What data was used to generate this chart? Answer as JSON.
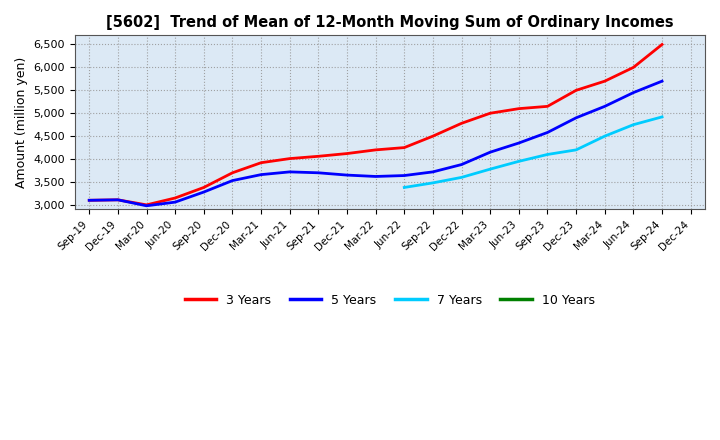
{
  "title": "[5602]  Trend of Mean of 12-Month Moving Sum of Ordinary Incomes",
  "ylabel": "Amount (million yen)",
  "ylim": [
    2900,
    6700
  ],
  "yticks": [
    3000,
    3500,
    4000,
    4500,
    5000,
    5500,
    6000,
    6500
  ],
  "plot_bg": "#dce9f5",
  "fig_bg": "#ffffff",
  "grid_color": "#999999",
  "x_labels": [
    "Sep-19",
    "Dec-19",
    "Mar-20",
    "Jun-20",
    "Sep-20",
    "Dec-20",
    "Mar-21",
    "Jun-21",
    "Sep-21",
    "Dec-21",
    "Mar-22",
    "Jun-22",
    "Sep-22",
    "Dec-22",
    "Mar-23",
    "Jun-23",
    "Sep-23",
    "Dec-23",
    "Mar-24",
    "Jun-24",
    "Sep-24",
    "Dec-24"
  ],
  "series": {
    "3 Years": {
      "color": "#ff0000",
      "data_x": [
        0,
        1,
        2,
        3,
        4,
        5,
        6,
        7,
        8,
        9,
        10,
        11,
        12,
        13,
        14,
        15,
        16,
        17,
        18,
        19,
        20
      ],
      "data_y": [
        3100,
        3110,
        3000,
        3150,
        3380,
        3700,
        3920,
        4010,
        4060,
        4120,
        4200,
        4250,
        4500,
        4780,
        5000,
        5100,
        5150,
        5500,
        5700,
        6000,
        6500
      ]
    },
    "5 Years": {
      "color": "#0000ff",
      "data_x": [
        0,
        1,
        2,
        3,
        4,
        5,
        6,
        7,
        8,
        9,
        10,
        11,
        12,
        13,
        14,
        15,
        16,
        17,
        18,
        19,
        20
      ],
      "data_y": [
        3100,
        3110,
        2980,
        3060,
        3280,
        3530,
        3660,
        3720,
        3700,
        3650,
        3620,
        3640,
        3720,
        3880,
        4150,
        4350,
        4580,
        4900,
        5150,
        5450,
        5700
      ]
    },
    "7 Years": {
      "color": "#00ccff",
      "data_x": [
        11,
        12,
        13,
        14,
        15,
        16,
        17,
        18,
        19,
        20
      ],
      "data_y": [
        3380,
        3480,
        3600,
        3780,
        3950,
        4100,
        4200,
        4500,
        4750,
        4920
      ]
    },
    "10 Years": {
      "color": "#008000",
      "data_x": [],
      "data_y": []
    }
  },
  "legend_labels": [
    "3 Years",
    "5 Years",
    "7 Years",
    "10 Years"
  ],
  "legend_colors": [
    "#ff0000",
    "#0000ff",
    "#00ccff",
    "#008000"
  ],
  "linewidth": 2.0
}
